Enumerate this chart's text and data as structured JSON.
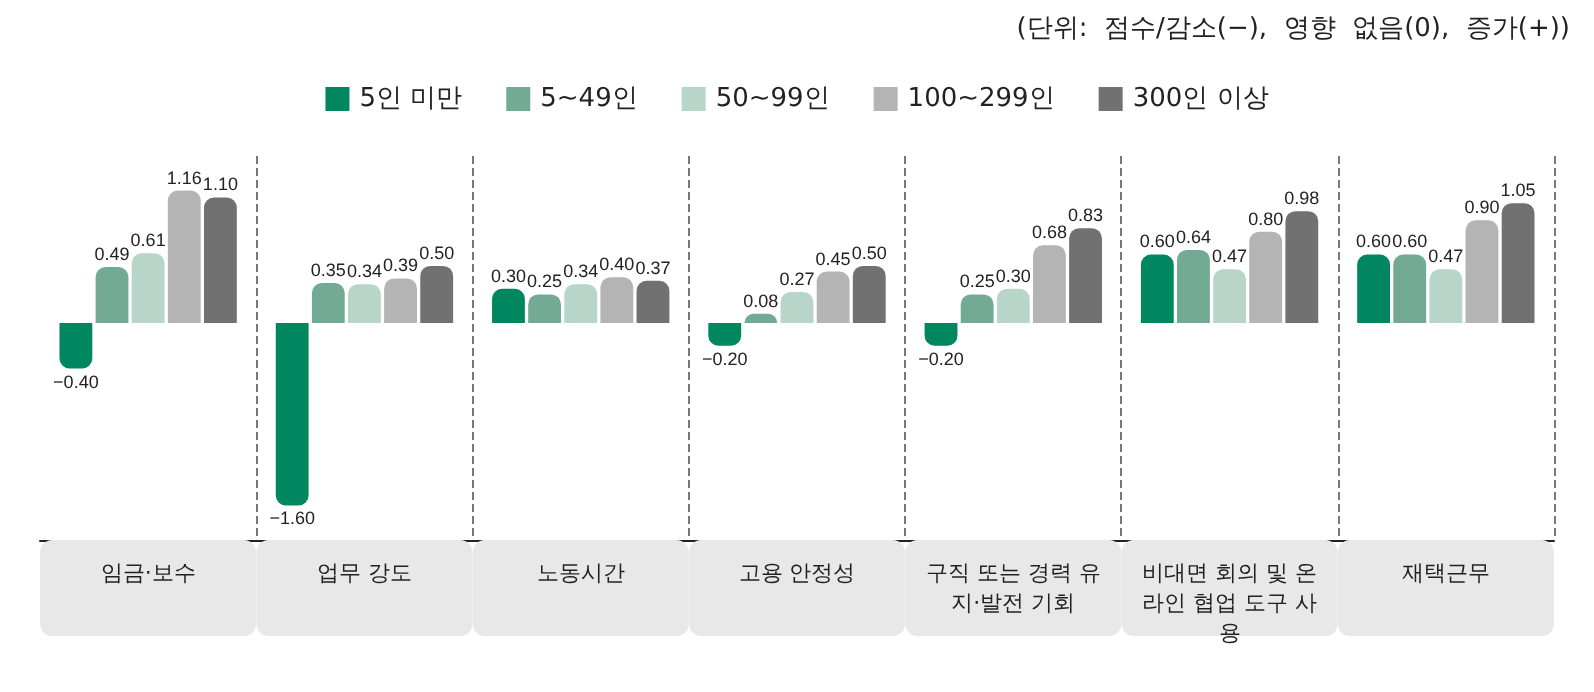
{
  "chart_data": {
    "type": "bar",
    "categories": [
      "임금·보수",
      "업무 강도",
      "노동시간",
      "고용 안정성",
      "구직 또는 경력 유지·발전 기회",
      "비대면 회의 및 온라인 협업 도구 사용",
      "재택근무"
    ],
    "series": [
      {
        "name": "5인 미만",
        "color": "#00875f",
        "values": [
          -0.4,
          -1.6,
          0.3,
          -0.2,
          -0.2,
          0.6,
          0.6
        ],
        "value_labels": [
          "−0.40",
          "−1.60",
          "0.30",
          "−0.20",
          "−0.20",
          "0.60",
          "0.60"
        ]
      },
      {
        "name": "5~49인",
        "color": "#72aa94",
        "values": [
          0.49,
          0.35,
          0.25,
          0.08,
          0.25,
          0.64,
          0.6
        ],
        "value_labels": [
          "0.49",
          "0.35",
          "0.25",
          "0.08",
          "0.25",
          "0.64",
          "0.60"
        ]
      },
      {
        "name": "50~99인",
        "color": "#b7d6c9",
        "values": [
          0.61,
          0.34,
          0.34,
          0.27,
          0.3,
          0.47,
          0.47
        ],
        "value_labels": [
          "0.61",
          "0.34",
          "0.34",
          "0.27",
          "0.30",
          "0.47",
          "0.47"
        ]
      },
      {
        "name": "100~299인",
        "color": "#b4b4b4",
        "values": [
          1.16,
          0.39,
          0.4,
          0.45,
          0.68,
          0.8,
          0.9
        ],
        "value_labels": [
          "1.16",
          "0.39",
          "0.40",
          "0.45",
          "0.68",
          "0.80",
          "0.90"
        ]
      },
      {
        "name": "300인 이상",
        "color": "#717171",
        "values": [
          1.1,
          0.5,
          0.37,
          0.5,
          0.83,
          0.98,
          1.05
        ],
        "value_labels": [
          "1.10",
          "0.50",
          "0.37",
          "0.50",
          "0.83",
          "0.98",
          "1.05"
        ]
      }
    ],
    "annotations": [
      "(단위:  점수/감소(−),  영향  없음(0),  증가(+))"
    ],
    "legend": "top",
    "grid": "x"
  }
}
